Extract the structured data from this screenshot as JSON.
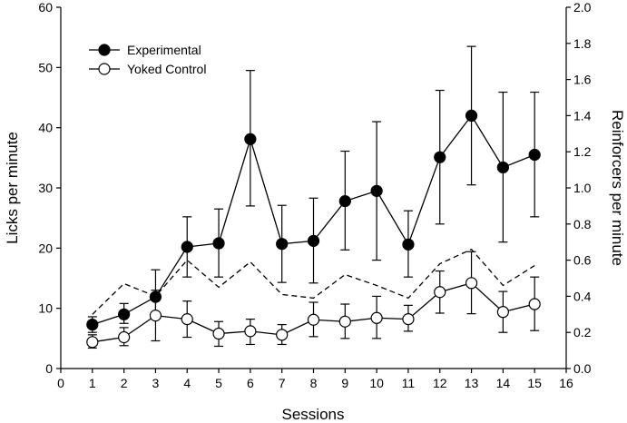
{
  "chart_data": {
    "type": "line",
    "xlabel": "Sessions",
    "ylabel_left": "Licks per minute",
    "ylabel_right": "Reinforcers per minute",
    "xlim": [
      0,
      16
    ],
    "ylim_left": [
      0,
      60
    ],
    "ylim_right": [
      0,
      2.0
    ],
    "x_ticks": [
      "0",
      "1",
      "2",
      "3",
      "4",
      "5",
      "6",
      "7",
      "8",
      "9",
      "10",
      "11",
      "12",
      "13",
      "14",
      "15",
      "16"
    ],
    "y_left_ticks": [
      "0",
      "10",
      "20",
      "30",
      "40",
      "50",
      "60"
    ],
    "y_right_ticks": [
      "0.0",
      "0.2",
      "0.4",
      "0.6",
      "0.8",
      "1.0",
      "1.2",
      "1.4",
      "1.6",
      "1.8",
      "2.0"
    ],
    "x": [
      1,
      2,
      3,
      4,
      5,
      6,
      7,
      8,
      9,
      10,
      11,
      12,
      13,
      14,
      15
    ],
    "series": [
      {
        "name": "Experimental",
        "axis": "left",
        "marker": "filled-circle",
        "values": [
          7.3,
          9.0,
          11.9,
          20.2,
          20.8,
          38.1,
          20.7,
          21.2,
          27.8,
          29.5,
          20.6,
          35.1,
          42.0,
          33.4,
          35.5
        ],
        "err_low": [
          6.0,
          7.5,
          9.0,
          15.2,
          15.2,
          27.0,
          14.3,
          14.2,
          19.7,
          18.0,
          15.2,
          24.0,
          30.5,
          21.0,
          25.2
        ],
        "err_high": [
          8.6,
          10.8,
          16.4,
          25.2,
          26.5,
          49.5,
          27.1,
          28.3,
          36.1,
          41.0,
          26.2,
          46.2,
          53.5,
          45.9,
          45.9
        ]
      },
      {
        "name": "Yoked Control",
        "axis": "left",
        "marker": "open-circle",
        "values": [
          4.4,
          5.2,
          8.8,
          8.2,
          5.8,
          6.2,
          5.6,
          8.1,
          7.8,
          8.4,
          8.2,
          12.7,
          14.2,
          9.4,
          10.7
        ],
        "err_low": [
          3.4,
          3.8,
          4.6,
          5.2,
          3.7,
          4.0,
          4.0,
          5.3,
          5.0,
          5.0,
          6.2,
          9.2,
          9.1,
          6.0,
          6.3
        ],
        "err_high": [
          5.6,
          6.8,
          13.0,
          11.2,
          7.8,
          8.2,
          7.3,
          11.0,
          10.7,
          12.0,
          10.5,
          16.2,
          19.4,
          12.8,
          15.2
        ]
      },
      {
        "name": "Reinforcers per minute",
        "axis": "right",
        "style": "dashed",
        "values": [
          0.3,
          0.47,
          0.4,
          0.6,
          0.45,
          0.59,
          0.41,
          0.39,
          0.52,
          0.46,
          0.39,
          0.58,
          0.66,
          0.46,
          0.57
        ]
      }
    ],
    "legend": {
      "position": "top-left",
      "entries": [
        "Experimental",
        "Yoked Control"
      ]
    }
  }
}
